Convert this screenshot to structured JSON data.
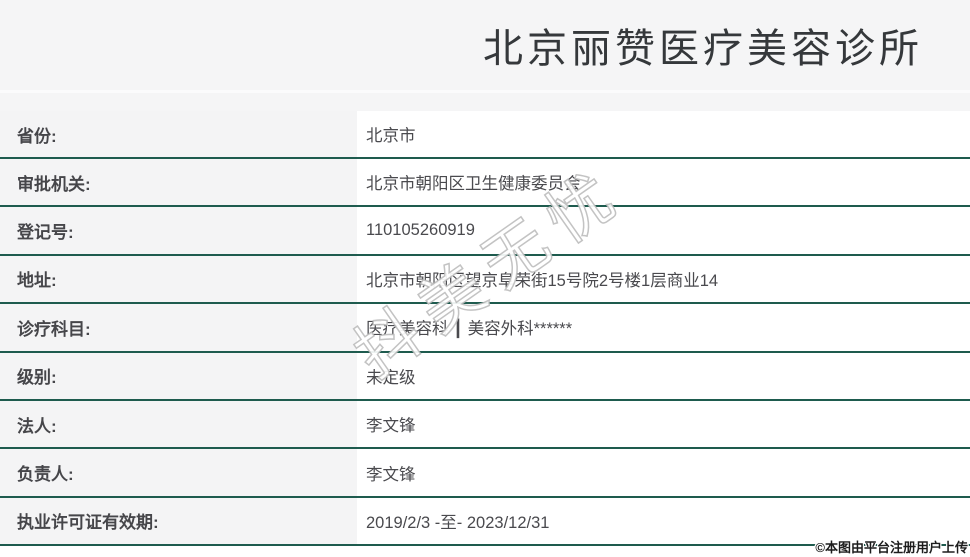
{
  "header": {
    "title": "北京丽赞医疗美容诊所"
  },
  "table": {
    "rows": [
      {
        "label": "省份:",
        "value": "北京市"
      },
      {
        "label": "审批机关:",
        "value": "北京市朝阳区卫生健康委员会"
      },
      {
        "label": "登记号:",
        "value": "110105260919"
      },
      {
        "label": "地址:",
        "value": "北京市朝阳区望京阜荣街15号院2号楼1层商业14"
      },
      {
        "label": "诊疗科目:",
        "value": "医疗美容科 ┃ 美容外科******"
      },
      {
        "label": "级别:",
        "value": "未定级"
      },
      {
        "label": "法人:",
        "value": "李文锋"
      },
      {
        "label": "负责人:",
        "value": "李文锋"
      },
      {
        "label": "执业许可证有效期:",
        "value": "2019/2/3 -至- 2023/12/31"
      }
    ]
  },
  "watermark": {
    "text": "抖美无忧"
  },
  "attribution": {
    "text": "©本图由平台注册用户上传"
  },
  "colors": {
    "separator_line": "#1e5b4e",
    "header_bg": "#f5f5f6",
    "label_bg": "#f4f4f5",
    "title_color": "#35383b",
    "body_text": "#46464a",
    "watermark_fill": "#ffffff",
    "watermark_outline": "#b9b9b9"
  }
}
